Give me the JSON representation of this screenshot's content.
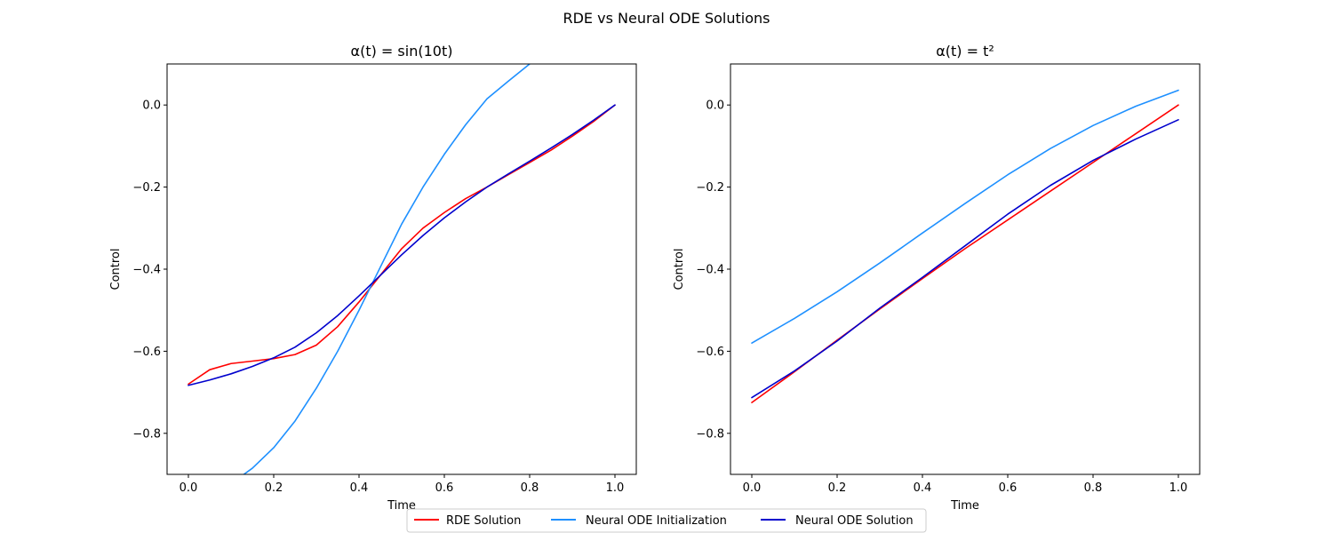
{
  "figure": {
    "suptitle": "RDE vs Neural ODE Solutions"
  },
  "colors": {
    "rde": "#ff0000",
    "init": "#1e90ff",
    "solution": "#0000cd",
    "axis": "#000000",
    "background": "#ffffff"
  },
  "legend": {
    "placement": "bottom-center",
    "entries": [
      {
        "label": "RDE Solution",
        "color": "#ff0000"
      },
      {
        "label": "Neural ODE Initialization",
        "color": "#1e90ff"
      },
      {
        "label": "Neural ODE Solution",
        "color": "#0000cd"
      }
    ]
  },
  "chart_data": [
    {
      "type": "line",
      "title": "α(t) = sin(10t)",
      "xlabel": "Time",
      "ylabel": "Control",
      "xlim": [
        -0.05,
        1.05
      ],
      "ylim": [
        -0.9,
        0.1
      ],
      "xticks": [
        0.0,
        0.2,
        0.4,
        0.6,
        0.8,
        1.0
      ],
      "xtick_labels": [
        "0.0",
        "0.2",
        "0.4",
        "0.6",
        "0.8",
        "1.0"
      ],
      "yticks": [
        0.0,
        -0.2,
        -0.4,
        -0.6,
        -0.8
      ],
      "ytick_labels": [
        "0.0",
        "−0.2",
        "−0.4",
        "−0.6",
        "−0.8"
      ],
      "grid": false,
      "series": [
        {
          "name": "RDE Solution",
          "color": "#ff0000",
          "x": [
            0.0,
            0.05,
            0.1,
            0.15,
            0.2,
            0.25,
            0.3,
            0.35,
            0.4,
            0.45,
            0.5,
            0.55,
            0.6,
            0.65,
            0.7,
            0.75,
            0.8,
            0.85,
            0.9,
            0.95,
            1.0
          ],
          "y": [
            -0.68,
            -0.645,
            -0.63,
            -0.624,
            -0.618,
            -0.608,
            -0.585,
            -0.54,
            -0.48,
            -0.415,
            -0.35,
            -0.3,
            -0.262,
            -0.228,
            -0.2,
            -0.17,
            -0.14,
            -0.11,
            -0.076,
            -0.04,
            0.0
          ]
        },
        {
          "name": "Neural ODE Initialization",
          "color": "#1e90ff",
          "x": [
            0.13,
            0.15,
            0.2,
            0.25,
            0.3,
            0.35,
            0.4,
            0.45,
            0.5,
            0.55,
            0.6,
            0.65,
            0.7,
            0.75,
            0.8
          ],
          "y": [
            -0.9,
            -0.885,
            -0.835,
            -0.77,
            -0.69,
            -0.6,
            -0.5,
            -0.395,
            -0.29,
            -0.2,
            -0.12,
            -0.048,
            0.015,
            0.058,
            0.1
          ]
        },
        {
          "name": "Neural ODE Solution",
          "color": "#0000cd",
          "x": [
            0.0,
            0.05,
            0.1,
            0.15,
            0.2,
            0.25,
            0.3,
            0.35,
            0.4,
            0.45,
            0.5,
            0.55,
            0.6,
            0.65,
            0.7,
            0.75,
            0.8,
            0.85,
            0.9,
            0.95,
            1.0
          ],
          "y": [
            -0.683,
            -0.67,
            -0.655,
            -0.637,
            -0.616,
            -0.59,
            -0.555,
            -0.513,
            -0.465,
            -0.415,
            -0.365,
            -0.318,
            -0.275,
            -0.236,
            -0.2,
            -0.168,
            -0.137,
            -0.105,
            -0.072,
            -0.037,
            0.0
          ]
        }
      ]
    },
    {
      "type": "line",
      "title": "α(t) = t²",
      "xlabel": "Time",
      "ylabel": "Control",
      "xlim": [
        -0.05,
        1.05
      ],
      "ylim": [
        -0.9,
        0.1
      ],
      "xticks": [
        0.0,
        0.2,
        0.4,
        0.6,
        0.8,
        1.0
      ],
      "xtick_labels": [
        "0.0",
        "0.2",
        "0.4",
        "0.6",
        "0.8",
        "1.0"
      ],
      "yticks": [
        0.0,
        -0.2,
        -0.4,
        -0.6,
        -0.8
      ],
      "ytick_labels": [
        "0.0",
        "−0.2",
        "−0.4",
        "−0.6",
        "−0.8"
      ],
      "grid": false,
      "series": [
        {
          "name": "RDE Solution",
          "color": "#ff0000",
          "x": [
            0.0,
            0.1,
            0.2,
            0.3,
            0.4,
            0.5,
            0.6,
            0.7,
            0.8,
            0.9,
            1.0
          ],
          "y": [
            -0.725,
            -0.65,
            -0.573,
            -0.497,
            -0.423,
            -0.35,
            -0.28,
            -0.21,
            -0.14,
            -0.07,
            0.0
          ]
        },
        {
          "name": "Neural ODE Initialization",
          "color": "#1e90ff",
          "x": [
            0.0,
            0.1,
            0.2,
            0.3,
            0.4,
            0.5,
            0.6,
            0.7,
            0.8,
            0.9,
            1.0
          ],
          "y": [
            -0.58,
            -0.52,
            -0.455,
            -0.385,
            -0.312,
            -0.24,
            -0.17,
            -0.106,
            -0.05,
            -0.003,
            0.036
          ]
        },
        {
          "name": "Neural ODE Solution",
          "color": "#0000cd",
          "x": [
            0.0,
            0.1,
            0.2,
            0.3,
            0.4,
            0.5,
            0.6,
            0.7,
            0.8,
            0.9,
            1.0
          ],
          "y": [
            -0.713,
            -0.648,
            -0.575,
            -0.495,
            -0.42,
            -0.343,
            -0.266,
            -0.196,
            -0.135,
            -0.083,
            -0.036
          ]
        }
      ]
    }
  ]
}
